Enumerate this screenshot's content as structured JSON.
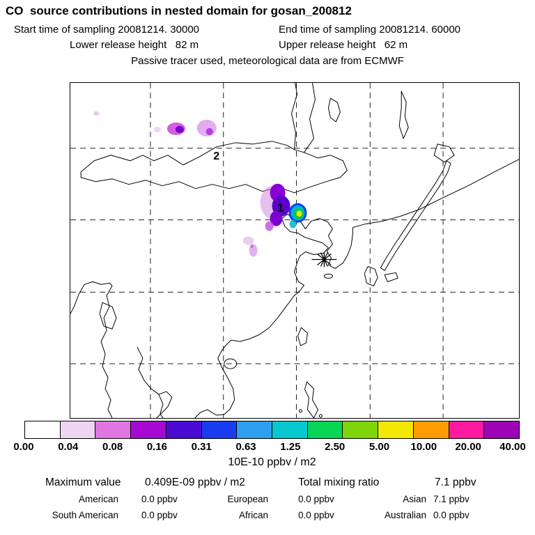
{
  "header": {
    "title": "CO  source contributions in nested domain for gosan_200812",
    "start_label": "Start time of sampling 20081214. 30000",
    "end_label": "End time of sampling 20081214. 60000",
    "lower_release": "Lower release height   82 m",
    "upper_release": "Upper release height   62 m",
    "tracer_line": "Passive tracer used, meteorological data are from ECMWF"
  },
  "map": {
    "labels": [
      {
        "text": "2"
      },
      {
        "text": "1"
      }
    ],
    "receptor": {
      "name": "gosan receptor star"
    }
  },
  "colorbar": {
    "units": "10E-10 ppbv / m2",
    "tick_labels": [
      "0.00",
      "0.04",
      "0.08",
      "0.16",
      "0.31",
      "0.63",
      "1.25",
      "2.50",
      "5.00",
      "10.00",
      "20.00",
      "40.00"
    ],
    "colors": [
      "#ffffff",
      "#eed5f2",
      "#df76e2",
      "#a50ad2",
      "#4a0ad2",
      "#1a3cf0",
      "#2f9ff0",
      "#07c8cf",
      "#08d455",
      "#7ed408",
      "#f2e705",
      "#ff9b05",
      "#ff18a0",
      "#9b05b4"
    ]
  },
  "stats": {
    "max_label": "Maximum value",
    "max_value": "0.409E-09 ppbv / m2",
    "total_label": "Total mixing ratio",
    "total_value": "7.1 ppbv",
    "rows": [
      [
        {
          "name": "American",
          "value": "0.0 ppbv"
        },
        {
          "name": "European",
          "value": "0.0 ppbv"
        },
        {
          "name": "Asian",
          "value": "7.1 ppbv"
        }
      ],
      [
        {
          "name": "South American",
          "value": "0.0 ppbv"
        },
        {
          "name": "African",
          "value": "0.0 ppbv"
        },
        {
          "name": "Australian",
          "value": "0.0 ppbv"
        }
      ]
    ]
  },
  "chart_data": {
    "type": "heatmap",
    "title": "CO  source contributions in nested domain for gosan_200812",
    "subtitle": [
      "Start time of sampling 20081214. 30000  End time of sampling 20081214. 60000",
      "Lower release height 82 m  Upper release height 62 m",
      "Passive tracer used, meteorological data are from ECMWF"
    ],
    "colorbar": {
      "units": "10E-10 ppbv / m2",
      "boundaries": [
        0.0,
        0.04,
        0.08,
        0.16,
        0.31,
        0.63,
        1.25,
        2.5,
        5.0,
        10.0,
        20.0,
        40.0
      ]
    },
    "annotations": [
      "2 (plume marker, Mongolia region)",
      "1 (plume maximum, Bohai/Beijing region)",
      "asterisk receptor marker near Gosan/Jeju"
    ],
    "maximum_value": "0.409E-09 ppbv / m2",
    "total_mixing_ratio_ppbv": 7.1,
    "contributions_ppbv": {
      "American": 0.0,
      "European": 0.0,
      "Asian": 7.1,
      "South American": 0.0,
      "African": 0.0,
      "Australian": 0.0
    },
    "legend_position": "bottom",
    "grid": "dashed lat/lon gridlines over East Asia coastline map"
  }
}
